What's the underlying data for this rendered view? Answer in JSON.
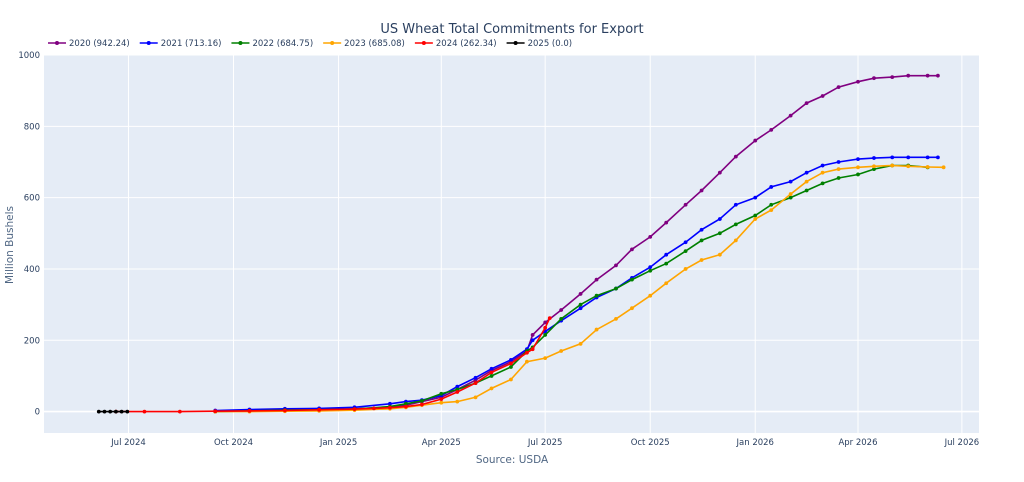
{
  "chart_data": {
    "type": "line",
    "title": "US Wheat Total Commitments for Export",
    "xlabel": "Source: USDA",
    "ylabel": "Million Bushels",
    "ylim": [
      -60,
      1000
    ],
    "xlim": [
      "2024-04-18",
      "2026-07-16"
    ],
    "grid": true,
    "legend_position": "top-left",
    "plot_bg": "#e5ecf6",
    "y_ticks": [
      0,
      200,
      400,
      600,
      800,
      1000
    ],
    "y_tick_labels": [
      "0",
      "200",
      "400",
      "600",
      "800",
      "1000"
    ],
    "x_ticks": [
      "2024-07-01",
      "2024-10-01",
      "2025-01-01",
      "2025-04-01",
      "2025-07-01",
      "2025-10-01",
      "2026-01-01",
      "2026-04-01",
      "2026-07-01"
    ],
    "x_tick_labels": [
      "Jul 2024",
      "Oct 2024",
      "Jan 2025",
      "Apr 2025",
      "Jul 2025",
      "Oct 2025",
      "Jan 2026",
      "Apr 2026",
      "Jul 2026"
    ],
    "series": [
      {
        "name": "2020 (942.24)",
        "color": "#800080",
        "points": [
          [
            "2024-09-15",
            0
          ],
          [
            "2024-10-15",
            2
          ],
          [
            "2024-11-15",
            4
          ],
          [
            "2024-12-15",
            6
          ],
          [
            "2025-01-15",
            8
          ],
          [
            "2025-02-15",
            12
          ],
          [
            "2025-03-01",
            18
          ],
          [
            "2025-03-15",
            28
          ],
          [
            "2025-04-01",
            40
          ],
          [
            "2025-04-15",
            62
          ],
          [
            "2025-05-01",
            88
          ],
          [
            "2025-05-15",
            115
          ],
          [
            "2025-06-01",
            140
          ],
          [
            "2025-06-15",
            170
          ],
          [
            "2025-06-20",
            215
          ],
          [
            "2025-07-01",
            250
          ],
          [
            "2025-07-15",
            285
          ],
          [
            "2025-08-01",
            330
          ],
          [
            "2025-08-15",
            370
          ],
          [
            "2025-09-01",
            410
          ],
          [
            "2025-09-15",
            455
          ],
          [
            "2025-10-01",
            490
          ],
          [
            "2025-10-15",
            530
          ],
          [
            "2025-11-01",
            580
          ],
          [
            "2025-11-15",
            620
          ],
          [
            "2025-12-01",
            670
          ],
          [
            "2025-12-15",
            715
          ],
          [
            "2026-01-01",
            760
          ],
          [
            "2026-01-15",
            790
          ],
          [
            "2026-02-01",
            830
          ],
          [
            "2026-02-15",
            865
          ],
          [
            "2026-03-01",
            885
          ],
          [
            "2026-03-15",
            910
          ],
          [
            "2026-04-01",
            925
          ],
          [
            "2026-04-15",
            935
          ],
          [
            "2026-05-01",
            938
          ],
          [
            "2026-05-15",
            942
          ],
          [
            "2026-06-01",
            942
          ],
          [
            "2026-06-10",
            942
          ]
        ]
      },
      {
        "name": "2021 (713.16)",
        "color": "#0000ff",
        "points": [
          [
            "2024-09-15",
            3
          ],
          [
            "2024-10-15",
            6
          ],
          [
            "2024-11-15",
            8
          ],
          [
            "2024-12-15",
            9
          ],
          [
            "2025-01-15",
            12
          ],
          [
            "2025-02-15",
            22
          ],
          [
            "2025-03-01",
            28
          ],
          [
            "2025-03-15",
            32
          ],
          [
            "2025-04-01",
            45
          ],
          [
            "2025-04-15",
            70
          ],
          [
            "2025-05-01",
            95
          ],
          [
            "2025-05-15",
            120
          ],
          [
            "2025-06-01",
            145
          ],
          [
            "2025-06-15",
            175
          ],
          [
            "2025-06-20",
            200
          ],
          [
            "2025-07-01",
            225
          ],
          [
            "2025-07-15",
            255
          ],
          [
            "2025-08-01",
            290
          ],
          [
            "2025-08-15",
            320
          ],
          [
            "2025-09-01",
            345
          ],
          [
            "2025-09-15",
            375
          ],
          [
            "2025-10-01",
            405
          ],
          [
            "2025-10-15",
            440
          ],
          [
            "2025-11-01",
            475
          ],
          [
            "2025-11-15",
            510
          ],
          [
            "2025-12-01",
            540
          ],
          [
            "2025-12-15",
            580
          ],
          [
            "2026-01-01",
            600
          ],
          [
            "2026-01-15",
            630
          ],
          [
            "2026-02-01",
            645
          ],
          [
            "2026-02-15",
            670
          ],
          [
            "2026-03-01",
            690
          ],
          [
            "2026-03-15",
            700
          ],
          [
            "2026-04-01",
            708
          ],
          [
            "2026-04-15",
            711
          ],
          [
            "2026-05-01",
            713
          ],
          [
            "2026-05-15",
            713
          ],
          [
            "2026-06-01",
            713
          ],
          [
            "2026-06-10",
            713
          ]
        ]
      },
      {
        "name": "2022 (684.75)",
        "color": "#008000",
        "points": [
          [
            "2024-09-15",
            0
          ],
          [
            "2024-10-15",
            2
          ],
          [
            "2024-11-15",
            4
          ],
          [
            "2024-12-15",
            5
          ],
          [
            "2025-01-15",
            7
          ],
          [
            "2025-02-15",
            14
          ],
          [
            "2025-03-01",
            22
          ],
          [
            "2025-03-15",
            30
          ],
          [
            "2025-04-01",
            50
          ],
          [
            "2025-04-15",
            62
          ],
          [
            "2025-05-01",
            80
          ],
          [
            "2025-05-15",
            100
          ],
          [
            "2025-06-01",
            125
          ],
          [
            "2025-06-15",
            170
          ],
          [
            "2025-06-20",
            180
          ],
          [
            "2025-07-01",
            215
          ],
          [
            "2025-07-15",
            260
          ],
          [
            "2025-08-01",
            300
          ],
          [
            "2025-08-15",
            325
          ],
          [
            "2025-09-01",
            345
          ],
          [
            "2025-09-15",
            370
          ],
          [
            "2025-10-01",
            395
          ],
          [
            "2025-10-15",
            415
          ],
          [
            "2025-11-01",
            450
          ],
          [
            "2025-11-15",
            480
          ],
          [
            "2025-12-01",
            500
          ],
          [
            "2025-12-15",
            525
          ],
          [
            "2026-01-01",
            550
          ],
          [
            "2026-01-15",
            580
          ],
          [
            "2026-02-01",
            600
          ],
          [
            "2026-02-15",
            620
          ],
          [
            "2026-03-01",
            640
          ],
          [
            "2026-03-15",
            655
          ],
          [
            "2026-04-01",
            665
          ],
          [
            "2026-04-15",
            680
          ],
          [
            "2026-05-01",
            690
          ],
          [
            "2026-05-15",
            690
          ],
          [
            "2026-06-01",
            685
          ]
        ]
      },
      {
        "name": "2023 (685.08)",
        "color": "#ffa500",
        "points": [
          [
            "2024-09-15",
            0
          ],
          [
            "2024-10-15",
            0
          ],
          [
            "2024-11-15",
            1
          ],
          [
            "2024-12-15",
            2
          ],
          [
            "2025-01-15",
            4
          ],
          [
            "2025-02-15",
            8
          ],
          [
            "2025-03-01",
            12
          ],
          [
            "2025-03-15",
            18
          ],
          [
            "2025-04-01",
            25
          ],
          [
            "2025-04-15",
            28
          ],
          [
            "2025-05-01",
            40
          ],
          [
            "2025-05-15",
            65
          ],
          [
            "2025-06-01",
            90
          ],
          [
            "2025-06-15",
            140
          ],
          [
            "2025-07-01",
            150
          ],
          [
            "2025-07-15",
            170
          ],
          [
            "2025-08-01",
            190
          ],
          [
            "2025-08-15",
            230
          ],
          [
            "2025-09-01",
            260
          ],
          [
            "2025-09-15",
            290
          ],
          [
            "2025-10-01",
            325
          ],
          [
            "2025-10-15",
            360
          ],
          [
            "2025-11-01",
            400
          ],
          [
            "2025-11-15",
            425
          ],
          [
            "2025-12-01",
            440
          ],
          [
            "2025-12-15",
            480
          ],
          [
            "2026-01-01",
            540
          ],
          [
            "2026-01-15",
            565
          ],
          [
            "2026-02-01",
            610
          ],
          [
            "2026-02-15",
            645
          ],
          [
            "2026-03-01",
            670
          ],
          [
            "2026-03-15",
            680
          ],
          [
            "2026-04-01",
            685
          ],
          [
            "2026-04-15",
            688
          ],
          [
            "2026-05-01",
            690
          ],
          [
            "2026-05-15",
            688
          ],
          [
            "2026-06-01",
            686
          ],
          [
            "2026-06-15",
            685
          ]
        ]
      },
      {
        "name": "2024 (262.34)",
        "color": "#ff0000",
        "points": [
          [
            "2024-06-20",
            0
          ],
          [
            "2024-07-15",
            0
          ],
          [
            "2024-08-15",
            0
          ],
          [
            "2024-09-15",
            1
          ],
          [
            "2024-10-15",
            2
          ],
          [
            "2024-11-15",
            3
          ],
          [
            "2024-12-15",
            5
          ],
          [
            "2025-01-15",
            7
          ],
          [
            "2025-02-01",
            9
          ],
          [
            "2025-02-15",
            11
          ],
          [
            "2025-03-01",
            14
          ],
          [
            "2025-03-15",
            20
          ],
          [
            "2025-04-01",
            35
          ],
          [
            "2025-04-15",
            55
          ],
          [
            "2025-05-01",
            80
          ],
          [
            "2025-05-15",
            110
          ],
          [
            "2025-06-01",
            135
          ],
          [
            "2025-06-15",
            165
          ],
          [
            "2025-06-20",
            175
          ],
          [
            "2025-07-01",
            235
          ],
          [
            "2025-07-05",
            262
          ]
        ]
      },
      {
        "name": "2025 (0.0)",
        "color": "#000000",
        "points": [
          [
            "2024-06-05",
            0
          ],
          [
            "2024-06-10",
            0
          ],
          [
            "2024-06-15",
            0
          ],
          [
            "2024-06-20",
            0
          ],
          [
            "2024-06-25",
            0
          ],
          [
            "2024-06-30",
            0
          ]
        ]
      }
    ],
    "source": "Source: USDA"
  }
}
